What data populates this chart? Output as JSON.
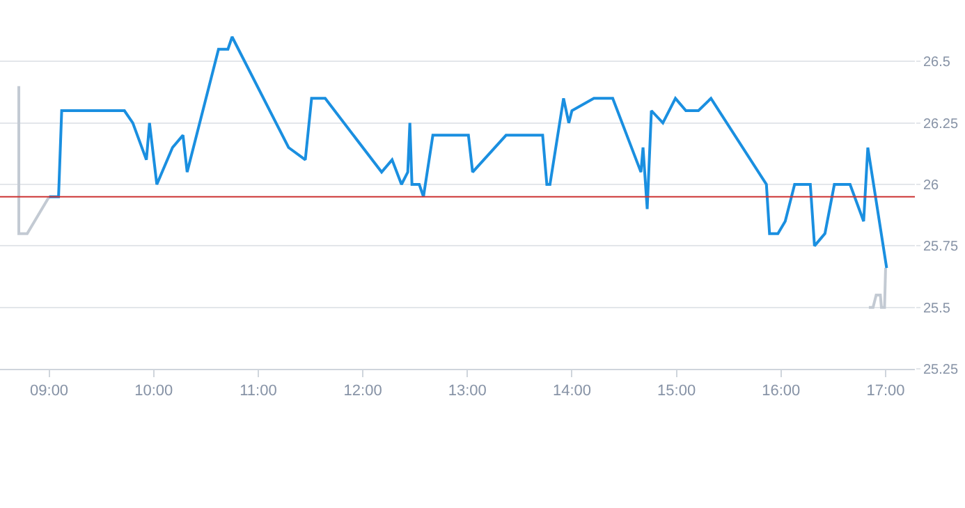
{
  "chart_data": {
    "type": "line",
    "xlim": [
      8.53,
      17.28
    ],
    "xticks": [
      {
        "value": 9,
        "label": "09:00"
      },
      {
        "value": 10,
        "label": "10:00"
      },
      {
        "value": 11,
        "label": "11:00"
      },
      {
        "value": 12,
        "label": "12:00"
      },
      {
        "value": 13,
        "label": "13:00"
      },
      {
        "value": 14,
        "label": "14:00"
      },
      {
        "value": 15,
        "label": "15:00"
      },
      {
        "value": 16,
        "label": "16:00"
      },
      {
        "value": 17,
        "label": "17:00"
      }
    ],
    "ylim": [
      25.25,
      26.75
    ],
    "yticks": [
      25.25,
      25.5,
      25.75,
      26,
      26.25,
      26.5
    ],
    "grid": "y",
    "marker": "none",
    "line_style": "solid",
    "ref_lines": [
      {
        "axis": "y",
        "value": 25.95,
        "color": "#cc3333"
      }
    ],
    "series": [
      {
        "color": "#c3cad3",
        "x": [
          8.71,
          8.71,
          8.79,
          9.0
        ],
        "values": [
          26.4,
          25.8,
          25.8,
          25.95
        ]
      },
      {
        "color": "#c3cad3",
        "x": [
          16.84,
          16.88,
          16.91,
          16.95,
          16.96,
          16.99,
          17.0
        ],
        "values": [
          25.5,
          25.5,
          25.55,
          25.55,
          25.5,
          25.5,
          25.66
        ]
      },
      {
        "color": "#1a8fe0",
        "x": [
          9.0,
          9.09,
          9.12,
          9.72,
          9.8,
          9.93,
          9.96,
          10.03,
          10.18,
          10.28,
          10.32,
          10.62,
          10.71,
          10.75,
          11.29,
          11.45,
          11.51,
          11.64,
          12.18,
          12.28,
          12.37,
          12.43,
          12.45,
          12.47,
          12.54,
          12.58,
          12.67,
          13.01,
          13.05,
          13.37,
          13.72,
          13.76,
          13.79,
          13.92,
          13.97,
          14.0,
          14.21,
          14.39,
          14.66,
          14.68,
          14.72,
          14.76,
          14.87,
          14.99,
          15.09,
          15.21,
          15.33,
          15.86,
          15.89,
          15.97,
          16.04,
          16.13,
          16.28,
          16.32,
          16.42,
          16.51,
          16.66,
          16.79,
          16.83,
          17.01
        ],
        "values": [
          25.95,
          25.95,
          26.3,
          26.3,
          26.25,
          26.1,
          26.25,
          26.0,
          26.15,
          26.2,
          26.05,
          26.55,
          26.55,
          26.6,
          26.15,
          26.1,
          26.35,
          26.35,
          26.05,
          26.1,
          26.0,
          26.05,
          26.25,
          26.0,
          26.0,
          25.95,
          26.2,
          26.2,
          26.05,
          26.2,
          26.2,
          26.0,
          26.0,
          26.35,
          26.25,
          26.3,
          26.35,
          26.35,
          26.05,
          26.15,
          25.9,
          26.3,
          26.25,
          26.35,
          26.3,
          26.3,
          26.35,
          26.0,
          25.8,
          25.8,
          25.85,
          26.0,
          26.0,
          25.75,
          25.8,
          26.0,
          26.0,
          25.85,
          26.15,
          25.66
        ]
      }
    ]
  }
}
